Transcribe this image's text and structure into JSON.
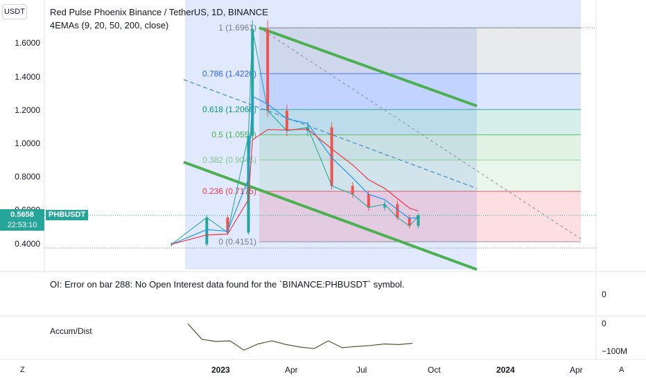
{
  "quote_currency": "USDT",
  "title": "Red Pulse Phoenix Binance / TetherUS, 1D, BINANCE",
  "indicator": "4EMAs (9, 20, 50, 200, close)",
  "price_axis_ticks": [
    "1.6000",
    "1.4000",
    "1.2000",
    "1.0000",
    "0.8000",
    "0.6000",
    "0.4000"
  ],
  "current_price": "0.5658",
  "countdown": "22:53:10",
  "symbol": "PHBUSDT",
  "fib_levels": [
    {
      "label": "1 (1.6961)",
      "value": 1.6961,
      "color": "#787b86"
    },
    {
      "label": "0.786 (1.4220)",
      "value": 1.422,
      "color": "#2962ff"
    },
    {
      "label": "0.618 (1.2068)",
      "value": 1.2068,
      "color": "#089981"
    },
    {
      "label": "0.5 (1.0556)",
      "value": 1.0556,
      "color": "#4caf50"
    },
    {
      "label": "0.382 (0.9045)",
      "value": 0.9045,
      "color": "#81c784"
    },
    {
      "label": "0.236 (0.7175)",
      "value": 0.7175,
      "color": "#f23645"
    },
    {
      "label": "0 (0.4151)",
      "value": 0.4151,
      "color": "#787b86"
    }
  ],
  "oi_pane": {
    "message": "OI: Error on bar 288: No Open Interest data found for the `BINANCE:PHBUSDT` symbol.",
    "axis_label": "0"
  },
  "ad_pane": {
    "label": "Accum/Dist",
    "axis_ticks": [
      "0",
      "−100M"
    ]
  },
  "time_axis_ticks": [
    {
      "label": "2023",
      "bold": true
    },
    {
      "label": "Apr",
      "bold": false
    },
    {
      "label": "Jul",
      "bold": false
    },
    {
      "label": "Oct",
      "bold": false
    },
    {
      "label": "2024",
      "bold": true
    },
    {
      "label": "Apr",
      "bold": false
    }
  ],
  "corner_buttons": {
    "left": "Z",
    "right": "A"
  },
  "colors": {
    "up": "#26a69a",
    "down": "#ef5350",
    "channel": "#4caf50",
    "trend_dashed": "#4a90c2",
    "ema_fast": "#2196f3",
    "ema_slow": "#f23645"
  },
  "chart_data": {
    "type": "line",
    "title": "Red Pulse Phoenix Binance / TetherUS, 1D, BINANCE",
    "x": [
      "2022-11-01",
      "2022-12-15",
      "2023-01-10",
      "2023-02-05",
      "2023-02-10",
      "2023-03-01",
      "2023-03-25",
      "2023-04-20",
      "2023-05-20",
      "2023-06-15",
      "2023-07-05",
      "2023-07-25",
      "2023-08-10",
      "2023-08-25",
      "2023-09-05"
    ],
    "series": [
      {
        "values": [
          0.4,
          0.56,
          0.47,
          1.05,
          1.69,
          1.2,
          1.08,
          1.1,
          0.75,
          0.7,
          0.62,
          0.64,
          0.56,
          0.51,
          0.5658
        ]
      }
    ],
    "ylim": [
      0.36,
      1.76
    ],
    "grid": true
  }
}
